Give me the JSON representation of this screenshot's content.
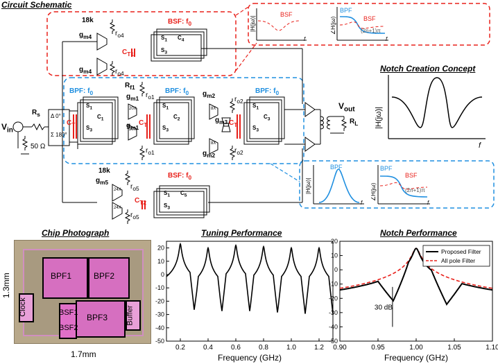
{
  "titles": {
    "circuit_schematic": "Circuit Schematic",
    "notch_concept": "Notch Creation Concept",
    "chip_photo": "Chip Photograph",
    "tuning": "Tuning Performance",
    "notch_perf": "Notch Performance"
  },
  "schematic": {
    "bsf_top": "BSF: f",
    "bsf_top_sub": "0",
    "bsf_bottom": "BSF: f",
    "bsf_bottom_sub": "0",
    "bpf1": "BPF: f",
    "bpf2": "BPF: f",
    "bpf3": "BPF: f",
    "bpf_sub": "0",
    "vin": "V",
    "vin_sub": "in",
    "vout": "V",
    "vout_sub": "out",
    "rs": "R",
    "rs_sub": "s",
    "rl": "R",
    "rl_sub": "L",
    "r50": "50 Ω",
    "balun_top": "Δ    0°",
    "balun_bot": "Σ 180°",
    "r18k_top": "18k",
    "r18k_bot": "18k",
    "gm4": "g",
    "gm4_sub": "m4",
    "gm5": "g",
    "gm5_sub": "m5",
    "gm1": "g",
    "gm1_sub": "m1",
    "gm2": "g",
    "gm2_sub": "m2",
    "gm3": "g",
    "gm3_sub": "m3",
    "ro4": "r",
    "ro4_sub": "o4",
    "ro5": "r",
    "ro5_sub": "o5",
    "ro1": "r",
    "ro1_sub": "o1",
    "ro2": "r",
    "ro2_sub": "o2",
    "rf1": "R",
    "rf1_sub": "f1",
    "ct": "C",
    "ct_sub": "T",
    "ct1": "C",
    "ct1_sub": "T1",
    "ct2": "C",
    "ct2_sub": "T2",
    "s1": "S",
    "s3": "S",
    "c1": "C",
    "c2": "C",
    "c3": "C",
    "c4": "C",
    "c5": "C",
    "x20": "20X",
    "x8": "8X",
    "x24": "24X",
    "inset_top": {
      "bsf": "BSF",
      "bpf": "BPF",
      "phase": "(2n+1)π",
      "h": "|H(jω)|",
      "angle": "∠H(jω)",
      "f": "f"
    },
    "inset_bottom": {
      "bsf": "BSF",
      "bpf": "BPF",
      "phase": "(2n+1)π",
      "h": "|H(jω)|",
      "angle": "∠H(jω)",
      "f": "f"
    }
  },
  "concept": {
    "ylabel": "|H(jω)|",
    "xlabel": "f"
  },
  "chip": {
    "blocks": [
      "BPF1",
      "BPF2",
      "BPF3",
      "Clock",
      "BSF1",
      "BSF2",
      "Buffer"
    ],
    "height_label": "1.3mm",
    "width_label": "1.7mm"
  },
  "chart_data": [
    {
      "type": "line",
      "title": "Tuning Performance",
      "xlabel": "Frequency (GHz)",
      "xlim": [
        0.1,
        1.3
      ],
      "ylim": [
        -50,
        25
      ],
      "xticks": [
        "0.2",
        "0.4",
        "0.6",
        "0.8",
        "1.0",
        "1.2"
      ],
      "yticks": [
        "20",
        "10",
        "0",
        "-10",
        "-20",
        "-30",
        "-40",
        "-50"
      ],
      "series": [
        {
          "peaks": [
            0.2,
            0.4,
            0.6,
            0.8,
            1.0,
            1.2
          ],
          "peak_values": [
            23,
            20,
            22,
            21,
            20,
            20
          ]
        }
      ],
      "grid": false
    },
    {
      "type": "line",
      "title": "Notch Performance",
      "xlabel": "Frequency (GHz)",
      "xlim": [
        0.9,
        1.1
      ],
      "ylim": [
        -50,
        20
      ],
      "xticks": [
        "0.90",
        "0.95",
        "1.00",
        "1.05",
        "1.10"
      ],
      "yticks": [
        "20",
        "10",
        "0",
        "-10",
        "-20",
        "-30",
        "-40",
        "-50"
      ],
      "annotation": "30 dB",
      "legend": "top-right",
      "series": [
        {
          "name": "Proposed Filter",
          "color": "#000000",
          "center": 1.0,
          "peak": 15,
          "notches": [
            0.97,
            1.04
          ],
          "notch_value": -40
        },
        {
          "name": "All pole Filter",
          "color": "#e8201a",
          "center": 1.0,
          "peak": 15
        }
      ],
      "grid": false
    }
  ]
}
